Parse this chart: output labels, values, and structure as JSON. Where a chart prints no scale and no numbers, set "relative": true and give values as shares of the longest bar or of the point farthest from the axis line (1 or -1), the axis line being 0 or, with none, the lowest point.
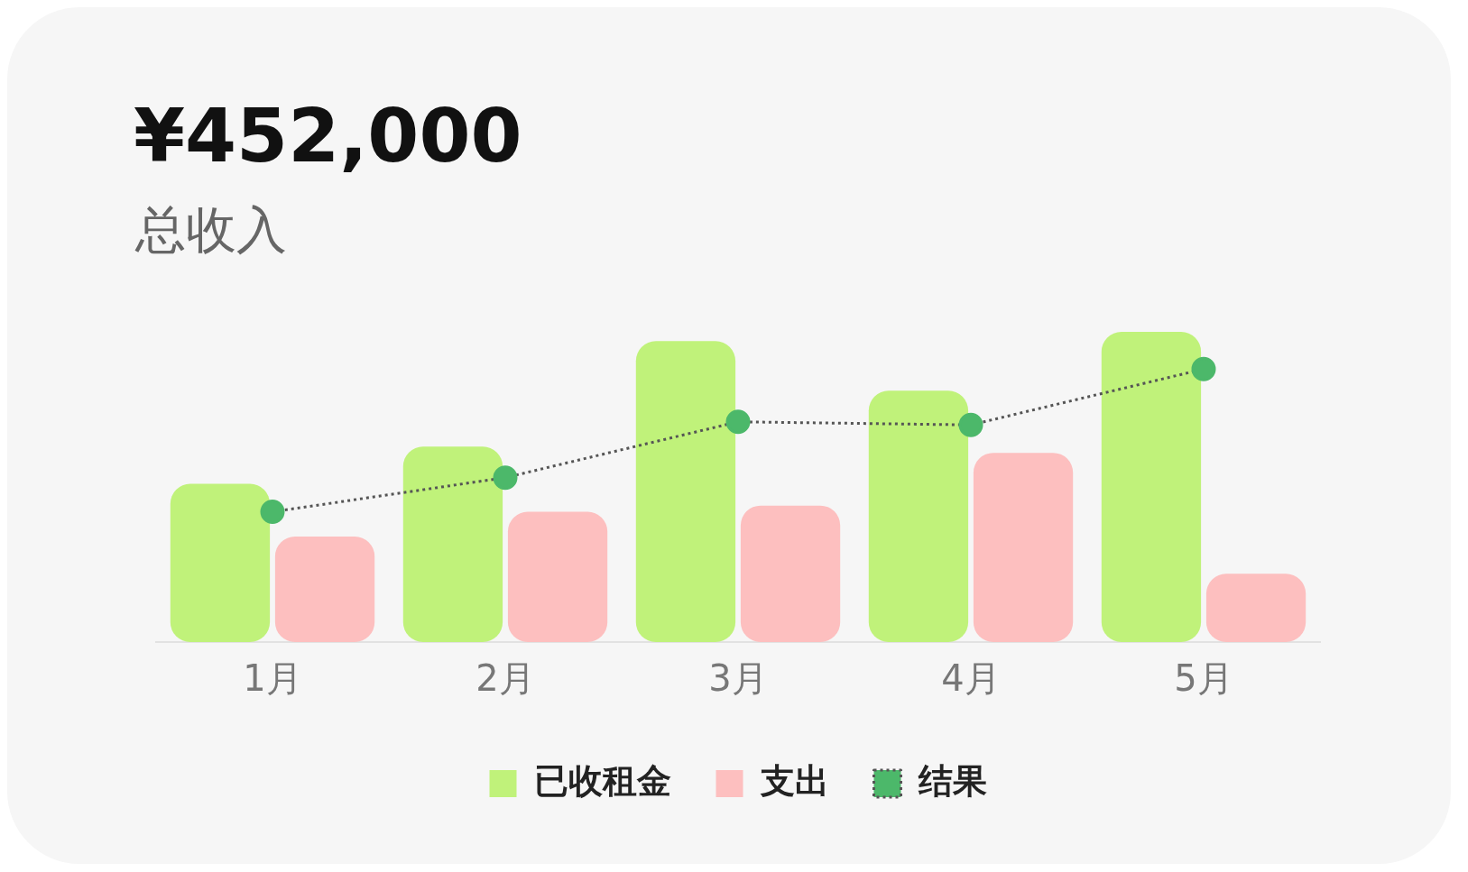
{
  "chart_data": {
    "type": "bar",
    "title": "¥452,000",
    "subtitle": "总收入",
    "categories": [
      "1月",
      "2月",
      "3月",
      "4月",
      "5月"
    ],
    "relative": true,
    "grid": false,
    "legend": "bottom",
    "series": [
      {
        "name": "已收租金",
        "color": "#c0f27a",
        "values": [
          0.51,
          0.63,
          0.97,
          0.81,
          1.0
        ]
      },
      {
        "name": "支出",
        "color": "#fdbfbf",
        "values": [
          0.34,
          0.42,
          0.44,
          0.61,
          0.22
        ]
      },
      {
        "name": "结果",
        "type": "line",
        "color": "#4cb86a",
        "values": [
          0.42,
          0.53,
          0.71,
          0.7,
          0.88
        ],
        "marker": "circle",
        "line_style": "dotted"
      }
    ]
  }
}
